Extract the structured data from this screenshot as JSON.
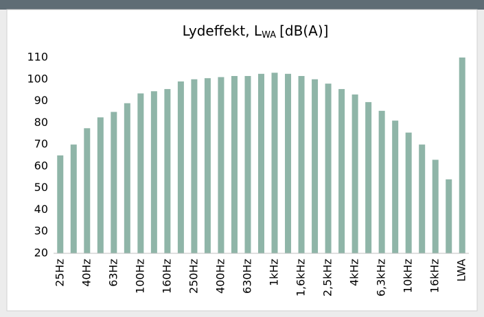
{
  "chart_data": {
    "type": "bar",
    "title": "Lydeffekt, L",
    "title_subscript": "WA",
    "title_unit": "[dB(A)]",
    "categories": [
      "25Hz",
      null,
      "40Hz",
      null,
      "63Hz",
      null,
      "100Hz",
      null,
      "160Hz",
      null,
      "250Hz",
      null,
      "400Hz",
      null,
      "630Hz",
      null,
      "1kHz",
      null,
      "1,6kHz",
      null,
      "2,5kHz",
      null,
      "4kHz",
      null,
      "6,3kHz",
      null,
      "10kHz",
      null,
      "16kHz",
      null,
      "LWA"
    ],
    "values": [
      65,
      70,
      77.5,
      82.5,
      85,
      89,
      93.5,
      94.5,
      95.5,
      99,
      100,
      100.5,
      101,
      101.5,
      101.5,
      102.5,
      103,
      102.5,
      101.5,
      100,
      98,
      95.5,
      93,
      89.5,
      85.5,
      81,
      75.5,
      70,
      63,
      54,
      110
    ],
    "color": "#8fb5a8",
    "ylim": [
      20,
      110
    ],
    "yticks": [
      20,
      30,
      40,
      50,
      60,
      70,
      80,
      90,
      100,
      110
    ],
    "grid": false
  }
}
